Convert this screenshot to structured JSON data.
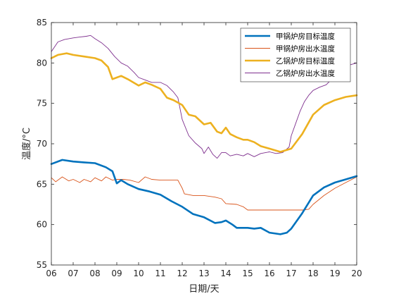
{
  "chart_data": {
    "type": "line",
    "title": "",
    "xlabel": "日期/天",
    "ylabel": "温度/°C",
    "xlim": [
      6,
      20
    ],
    "ylim": [
      55,
      85
    ],
    "x_ticks": [
      6,
      7,
      8,
      9,
      10,
      11,
      12,
      13,
      14,
      15,
      16,
      17,
      18,
      19,
      20
    ],
    "x_tick_labels": [
      "06",
      "07",
      "08",
      "09",
      "10",
      "11",
      "12",
      "13",
      "14",
      "15",
      "16",
      "17",
      "18",
      "19",
      "20"
    ],
    "y_ticks": [
      55,
      60,
      65,
      70,
      75,
      80,
      85
    ],
    "y_tick_labels": [
      "55",
      "60",
      "65",
      "70",
      "75",
      "80",
      "85"
    ],
    "grid": false,
    "legend_position": "top-right",
    "series": [
      {
        "name": "甲锅炉房目标温度",
        "color": "#0072BD",
        "thick": true,
        "x": [
          6.0,
          6.5,
          7.0,
          7.5,
          8.0,
          8.5,
          8.8,
          9.0,
          9.2,
          9.5,
          10.0,
          10.5,
          11.0,
          11.5,
          12.0,
          12.5,
          13.0,
          13.5,
          13.8,
          14.0,
          14.3,
          14.5,
          15.0,
          15.3,
          15.6,
          16.0,
          16.5,
          16.8,
          17.0,
          17.5,
          18.0,
          18.5,
          19.0,
          19.5,
          20.0
        ],
        "values": [
          67.5,
          68.0,
          67.8,
          67.7,
          67.6,
          67.1,
          66.6,
          65.1,
          65.5,
          65.0,
          64.4,
          64.1,
          63.7,
          62.9,
          62.2,
          61.3,
          60.9,
          60.2,
          60.3,
          60.5,
          60.0,
          59.6,
          59.6,
          59.5,
          59.6,
          59.0,
          58.8,
          59.0,
          59.5,
          61.4,
          63.6,
          64.6,
          65.2,
          65.6,
          66.0
        ]
      },
      {
        "name": "甲锅炉房出水温度",
        "color": "#D95319",
        "thick": false,
        "x": [
          6.0,
          6.2,
          6.5,
          6.8,
          7.0,
          7.3,
          7.5,
          7.8,
          8.0,
          8.3,
          8.5,
          8.8,
          9.0,
          9.3,
          9.6,
          10.0,
          10.3,
          10.6,
          11.0,
          11.5,
          11.8,
          12.0,
          12.1,
          12.5,
          13.0,
          13.5,
          13.8,
          14.0,
          14.5,
          14.8,
          15.0,
          15.5,
          16.0,
          16.5,
          17.0,
          17.5,
          17.8,
          18.0,
          18.5,
          19.0,
          19.5,
          20.0
        ],
        "values": [
          65.8,
          65.3,
          65.9,
          65.4,
          65.6,
          65.2,
          65.6,
          65.3,
          65.8,
          65.4,
          65.9,
          65.5,
          65.6,
          65.6,
          65.5,
          65.2,
          65.9,
          65.6,
          65.5,
          65.5,
          65.5,
          64.5,
          63.8,
          63.6,
          63.6,
          63.4,
          63.2,
          62.6,
          62.5,
          62.2,
          61.8,
          61.8,
          61.8,
          61.8,
          61.8,
          61.8,
          61.9,
          62.5,
          63.6,
          64.5,
          65.2,
          65.9
        ]
      },
      {
        "name": "乙锅炉房目标温度",
        "color": "#EDB120",
        "thick": true,
        "x": [
          6.0,
          6.3,
          6.7,
          7.0,
          7.5,
          8.0,
          8.3,
          8.6,
          8.8,
          9.0,
          9.2,
          9.5,
          10.0,
          10.3,
          10.6,
          11.0,
          11.3,
          11.6,
          12.0,
          12.3,
          12.6,
          13.0,
          13.3,
          13.6,
          13.8,
          14.0,
          14.2,
          14.5,
          14.8,
          15.0,
          15.3,
          15.6,
          16.0,
          16.5,
          17.0,
          17.5,
          18.0,
          18.5,
          19.0,
          19.5,
          20.0
        ],
        "values": [
          80.6,
          81.0,
          81.2,
          81.0,
          80.8,
          80.6,
          80.3,
          79.5,
          78.0,
          78.2,
          78.4,
          78.0,
          77.2,
          77.6,
          77.3,
          76.8,
          75.7,
          75.4,
          74.8,
          73.6,
          73.4,
          72.4,
          72.6,
          71.5,
          71.3,
          72.0,
          71.2,
          70.8,
          70.5,
          70.5,
          70.2,
          69.7,
          69.4,
          69.0,
          69.4,
          71.2,
          73.6,
          74.8,
          75.4,
          75.8,
          76.0
        ]
      },
      {
        "name": "乙锅炉房出水温度",
        "color": "#7E2F8E",
        "thick": false,
        "x": [
          6.0,
          6.3,
          6.6,
          7.0,
          7.3,
          7.6,
          7.8,
          8.0,
          8.3,
          8.6,
          8.9,
          9.2,
          9.5,
          9.8,
          10.0,
          10.3,
          10.6,
          11.0,
          11.3,
          11.6,
          11.8,
          12.0,
          12.3,
          12.6,
          12.9,
          13.0,
          13.2,
          13.4,
          13.6,
          13.8,
          14.0,
          14.2,
          14.5,
          14.8,
          15.0,
          15.3,
          15.6,
          16.0,
          16.3,
          16.6,
          16.9,
          17.0,
          17.2,
          17.4,
          17.6,
          17.8,
          18.0,
          18.3,
          18.6,
          19.0,
          19.3,
          19.6,
          20.0
        ],
        "values": [
          81.4,
          82.6,
          82.9,
          83.1,
          83.2,
          83.3,
          83.4,
          83.0,
          82.5,
          81.8,
          80.8,
          80.0,
          79.6,
          78.8,
          78.2,
          77.9,
          77.6,
          77.6,
          77.2,
          76.4,
          75.7,
          73.0,
          71.0,
          70.1,
          69.4,
          68.8,
          69.6,
          68.7,
          68.2,
          68.9,
          68.9,
          68.5,
          68.7,
          68.5,
          68.8,
          68.4,
          68.8,
          69.0,
          68.8,
          68.9,
          69.6,
          71.0,
          72.5,
          74.0,
          75.2,
          76.0,
          76.6,
          77.0,
          77.3,
          78.4,
          79.6,
          79.7,
          80.0
        ]
      }
    ]
  }
}
